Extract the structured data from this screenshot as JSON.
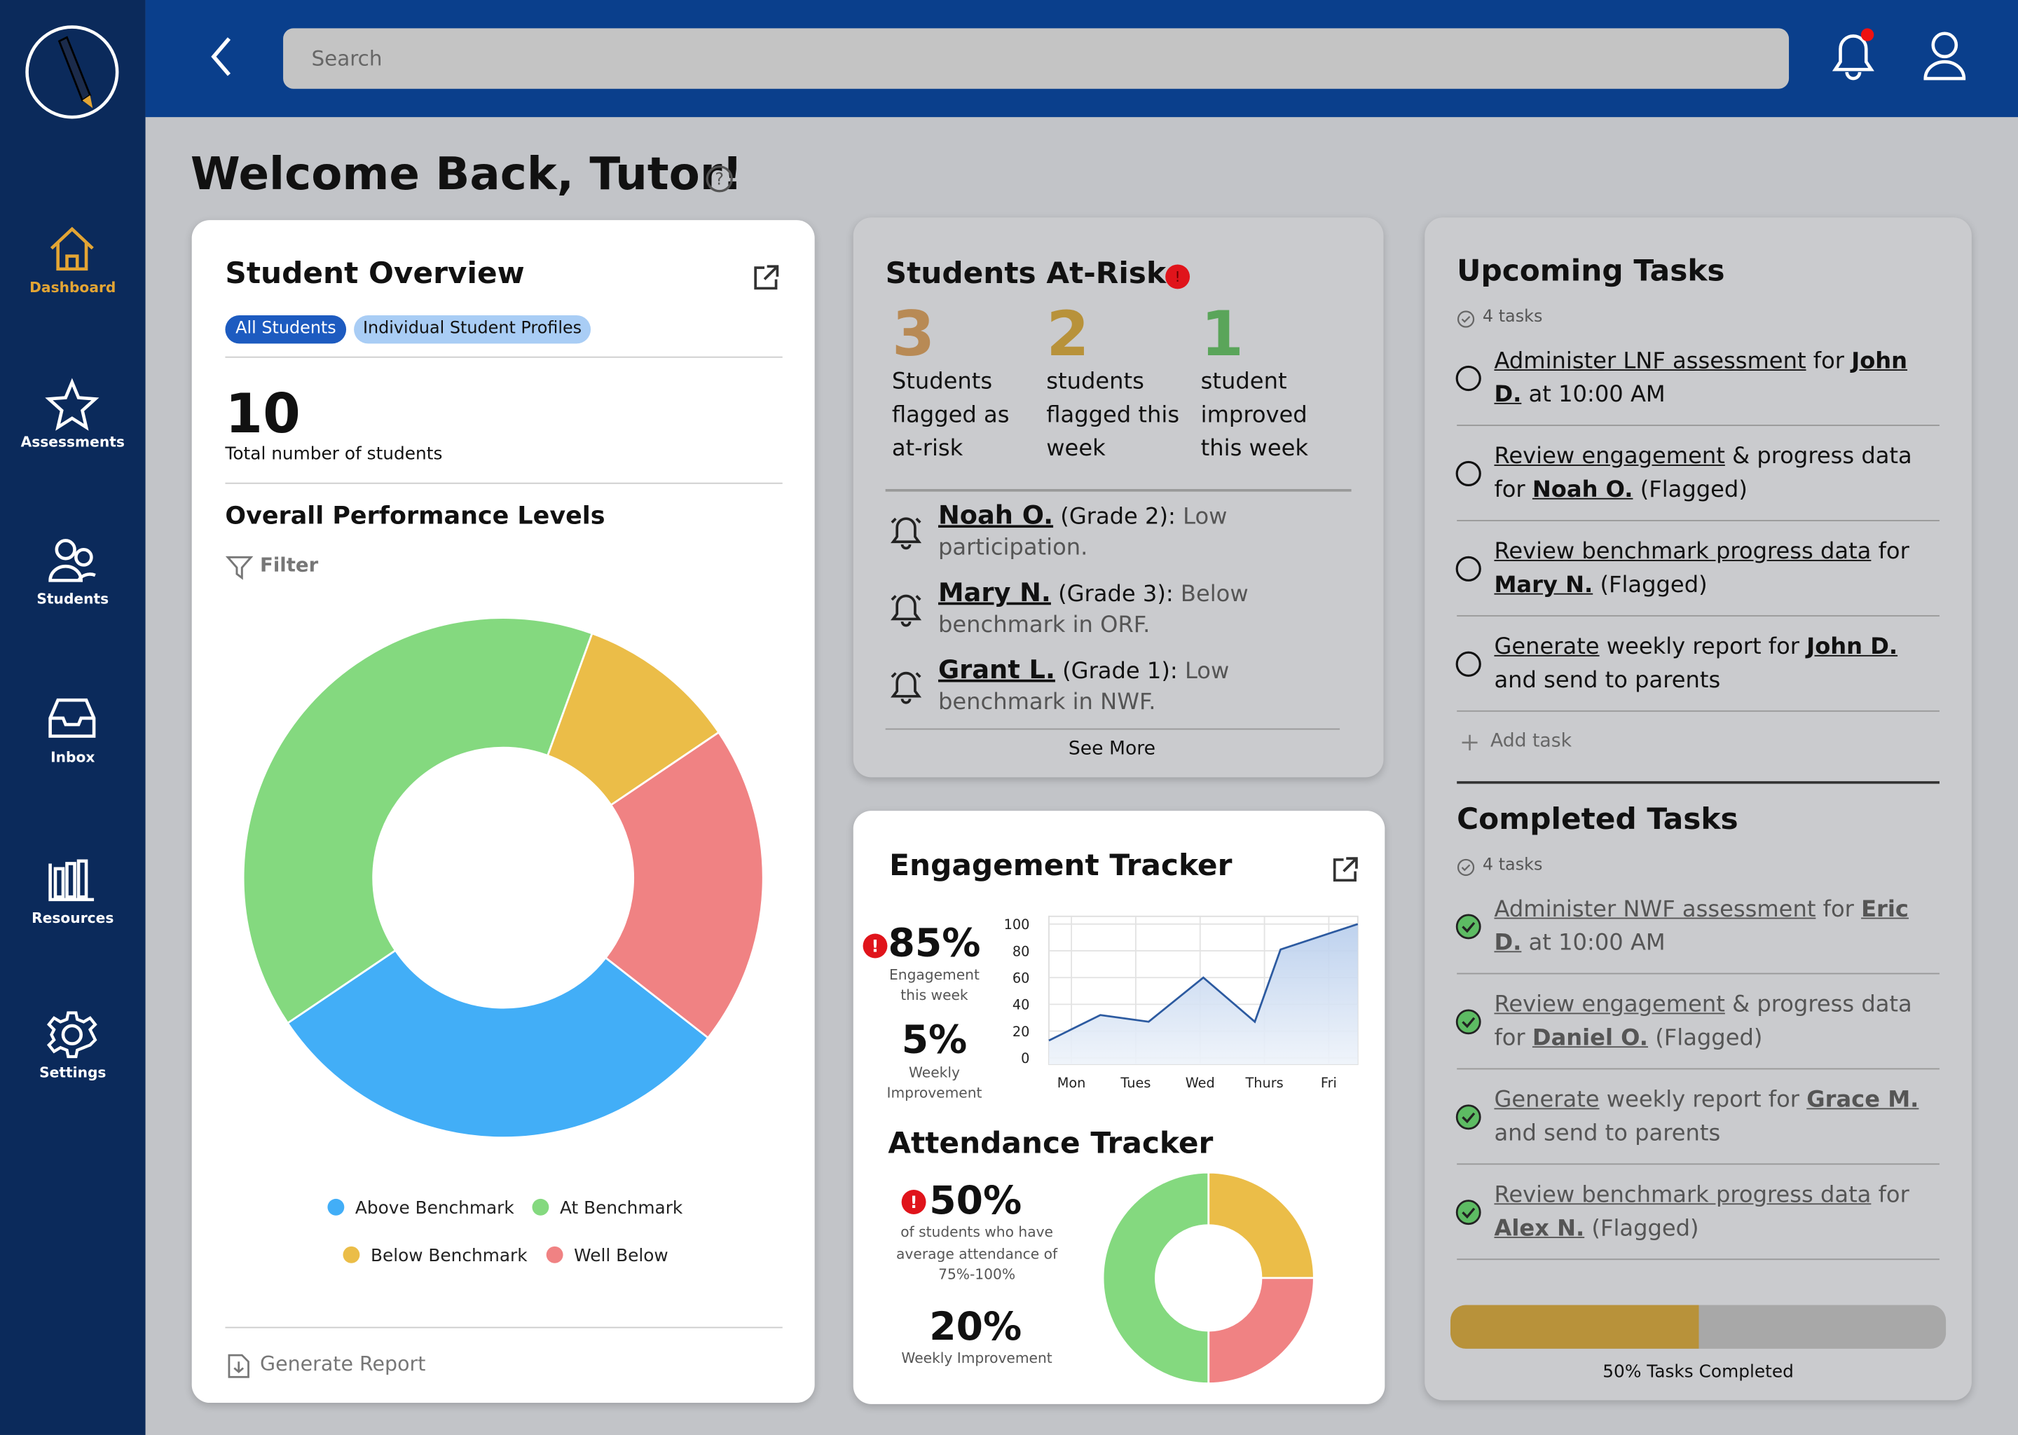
{
  "search_placeholder": "Search",
  "nav": [
    "Dashboard",
    "Assessments",
    "Students",
    "Inbox",
    "Resources",
    "Settings"
  ],
  "title": "Welcome Back, Tutor!",
  "overview": {
    "title": "Student Overview",
    "tabs": [
      "All Students",
      "Individual Student Profiles"
    ],
    "total": "10",
    "total_label": "Total number of students",
    "perf_title": "Overall Performance Levels",
    "filter": "Filter",
    "generate": "Generate Report"
  },
  "at_risk": {
    "title": "Students At-Risk",
    "stats": [
      {
        "num": "3",
        "label": "Students flagged as at-risk"
      },
      {
        "num": "2",
        "label": "students flagged this week"
      },
      {
        "num": "1",
        "label": "student improved this week"
      }
    ],
    "alerts": [
      {
        "name": "Noah O.",
        "detail": " (Grade 2): ",
        "note": "Low participation."
      },
      {
        "name": "Mary N.",
        "detail": " (Grade 3): ",
        "note": "Below benchmark in ORF."
      },
      {
        "name": "Grant L.",
        "detail": " (Grade 1): ",
        "note": "Low benchmark in NWF."
      }
    ],
    "more": "See More"
  },
  "engagement": {
    "title": "Engagement Tracker",
    "value": "85%",
    "value_label": "Engagement this week",
    "improve": "5%",
    "improve_label": "Weekly Improvement"
  },
  "attendance": {
    "title": "Attendance Tracker",
    "value": "50%",
    "value_label": "of students who have average attendance of 75%-100%",
    "improve": "20%",
    "improve_label": "Weekly Improvement"
  },
  "upcoming": {
    "title": "Upcoming Tasks",
    "count": "4 tasks",
    "items": [
      [
        {
          "text": "Administer LNF assessment",
          "style": "link"
        },
        {
          "text": " for "
        },
        {
          "text": "John D.",
          "style": "name"
        },
        {
          "text": " at 10:00 AM"
        }
      ],
      [
        {
          "text": "Review engagement",
          "style": "link"
        },
        {
          "text": " & progress data for "
        },
        {
          "text": "Noah O.",
          "style": "name"
        },
        {
          "text": " (Flagged)"
        }
      ],
      [
        {
          "text": "Review benchmark progress data",
          "style": "link"
        },
        {
          "text": " for "
        },
        {
          "text": "Mary N.",
          "style": "name"
        },
        {
          "text": " (Flagged)"
        }
      ],
      [
        {
          "text": "Generate",
          "style": "link"
        },
        {
          "text": " weekly report for "
        },
        {
          "text": "John D.",
          "style": "name"
        },
        {
          "text": " and send to parents"
        }
      ]
    ],
    "add": "Add task"
  },
  "completed": {
    "title": "Completed Tasks",
    "count": "4 tasks",
    "items": [
      [
        {
          "text": "Administer NWF assessment",
          "style": "link"
        },
        {
          "text": " for "
        },
        {
          "text": "Eric D.",
          "style": "name"
        },
        {
          "text": " at 10:00 AM"
        }
      ],
      [
        {
          "text": "Review engagement",
          "style": "link"
        },
        {
          "text": " & progress data for "
        },
        {
          "text": "Daniel O.",
          "style": "name"
        },
        {
          "text": " (Flagged)"
        }
      ],
      [
        {
          "text": "Generate",
          "style": "link"
        },
        {
          "text": " weekly report for "
        },
        {
          "text": "Grace M.",
          "style": "name"
        },
        {
          "text": " and send to parents"
        }
      ],
      [
        {
          "text": "Review benchmark progress data",
          "style": "link"
        },
        {
          "text": " for "
        },
        {
          "text": "Alex N.",
          "style": "name"
        },
        {
          "text": " (Flagged)"
        }
      ]
    ]
  },
  "progress": {
    "value": 50,
    "label": "50% Tasks Completed"
  },
  "chart_data": [
    {
      "type": "pie",
      "categories": [
        "Above Benchmark",
        "At Benchmark",
        "Below Benchmark",
        "Well Below"
      ],
      "values": [
        3,
        4,
        1,
        2
      ],
      "colors": [
        "#42aef7",
        "#84d97f",
        "#ebbd48",
        "#f08283"
      ],
      "legend": true
    },
    {
      "type": "line",
      "x": [
        -0.35,
        0.45,
        1.2,
        2.05,
        2.85,
        3.25,
        4.45
      ],
      "series": [
        {
          "color": "#2c5aa0",
          "values": [
            13,
            32,
            27,
            60,
            27,
            81,
            100
          ]
        }
      ],
      "xlim": [
        -0.35,
        4.45
      ],
      "xticks": [
        {
          "value": 0,
          "label": "Mon"
        },
        {
          "value": 1,
          "label": "Tues"
        },
        {
          "value": 2,
          "label": "Wed"
        },
        {
          "value": 3,
          "label": "Thurs"
        },
        {
          "value": 4,
          "label": "Fri"
        }
      ],
      "ylim": [
        0,
        100
      ],
      "yticks": [
        0,
        20,
        40,
        60,
        80,
        100
      ],
      "grid": true
    },
    {
      "type": "pie",
      "values": [
        25,
        25,
        50
      ],
      "colors": [
        "#ebbd48",
        "#f08283",
        "#84d97f"
      ]
    }
  ]
}
